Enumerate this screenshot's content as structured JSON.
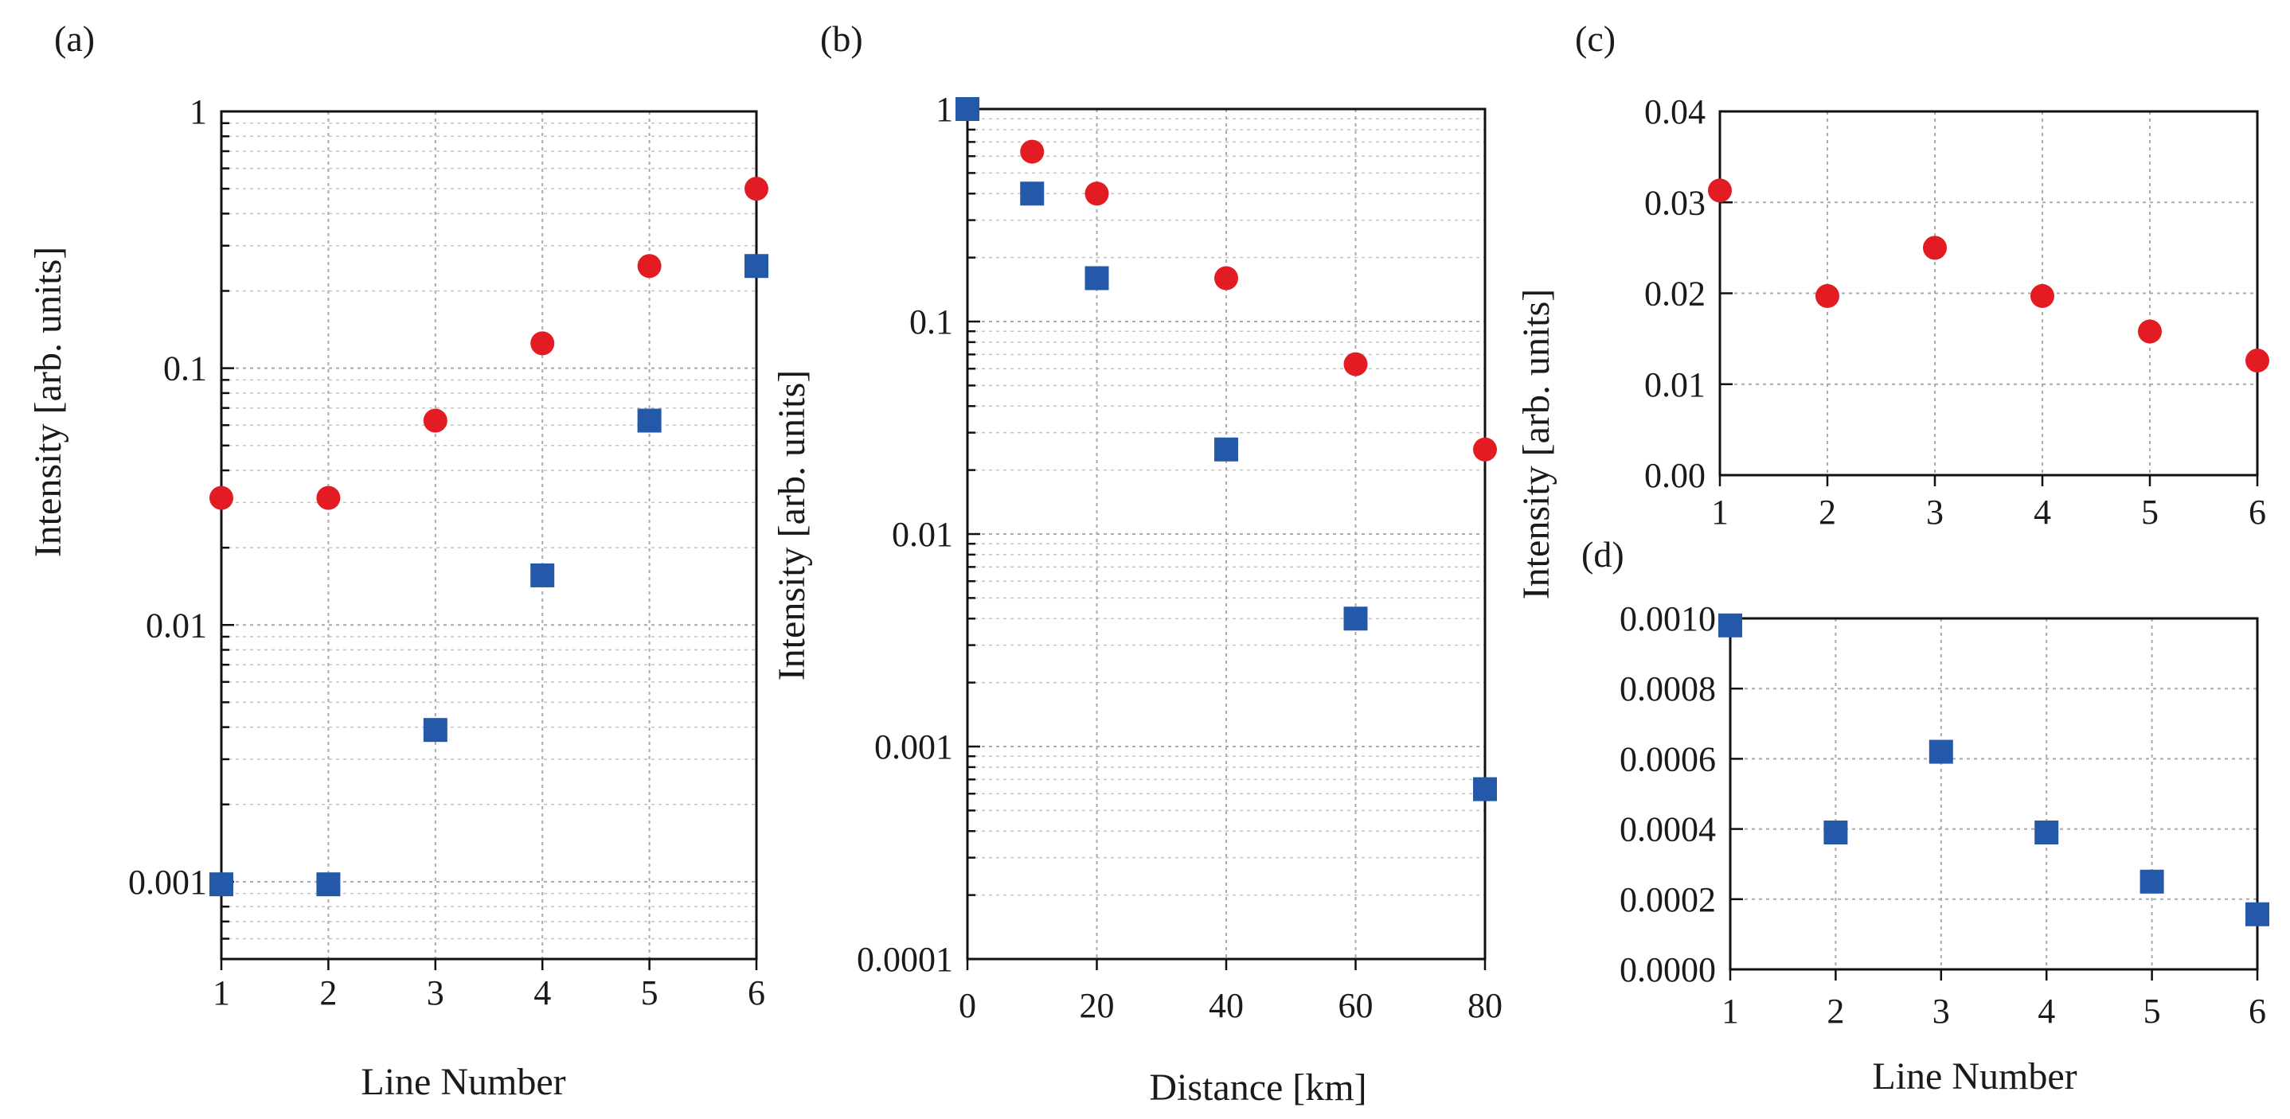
{
  "colors": {
    "red": "#e31b23",
    "blue": "#2458a8",
    "axis": "#111111",
    "grid": "#a9a9a9"
  },
  "chart_data": [
    {
      "id": "a",
      "panel_label": "(a)",
      "type": "scatter",
      "xlabel": "Line Number",
      "ylabel": "Intensity [arb. units]",
      "yscale": "log",
      "xlim": [
        1,
        6
      ],
      "ylim": [
        0.0005,
        1
      ],
      "xticks": [
        "1",
        "2",
        "3",
        "4",
        "5",
        "6"
      ],
      "yticks": [
        "0.001",
        "0.01",
        "0.1",
        "1"
      ],
      "series": [
        {
          "name": "red circles",
          "marker": "circle",
          "color": "#e31b23",
          "x": [
            1,
            2,
            3,
            4,
            5,
            6
          ],
          "y": [
            0.03125,
            0.03125,
            0.0625,
            0.125,
            0.25,
            0.5
          ]
        },
        {
          "name": "blue squares",
          "marker": "square",
          "color": "#2458a8",
          "x": [
            1,
            2,
            3,
            4,
            5,
            6
          ],
          "y": [
            0.000977,
            0.000977,
            0.0039,
            0.0156,
            0.0625,
            0.25
          ]
        }
      ]
    },
    {
      "id": "b",
      "panel_label": "(b)",
      "type": "scatter",
      "xlabel": "Distance [km]",
      "ylabel": "Intensity [arb. units]",
      "yscale": "log",
      "xlim": [
        0,
        80
      ],
      "ylim": [
        0.0001,
        1
      ],
      "xticks": [
        "0",
        "20",
        "40",
        "60",
        "80"
      ],
      "yticks": [
        "0.0001",
        "0.001",
        "0.01",
        "0.1",
        "1"
      ],
      "series": [
        {
          "name": "red circles",
          "marker": "circle",
          "color": "#e31b23",
          "x": [
            10,
            20,
            40,
            60,
            80
          ],
          "y": [
            0.63,
            0.4,
            0.16,
            0.063,
            0.025
          ]
        },
        {
          "name": "blue squares",
          "marker": "square",
          "color": "#2458a8",
          "x": [
            0,
            10,
            20,
            40,
            60,
            80
          ],
          "y": [
            1.0,
            0.4,
            0.16,
            0.025,
            0.004,
            0.00063
          ]
        }
      ]
    },
    {
      "id": "c",
      "panel_label": "(c)",
      "type": "scatter",
      "xlabel": "",
      "ylabel": "Intensity [arb. units]",
      "yscale": "linear",
      "xlim": [
        1,
        6
      ],
      "ylim": [
        0,
        0.04
      ],
      "xticks": [
        "1",
        "2",
        "3",
        "4",
        "5",
        "6"
      ],
      "yticks": [
        "0.00",
        "0.01",
        "0.02",
        "0.03",
        "0.04"
      ],
      "series": [
        {
          "name": "red circles",
          "marker": "circle",
          "color": "#e31b23",
          "x": [
            1,
            2,
            3,
            4,
            5,
            6
          ],
          "y": [
            0.0313,
            0.0197,
            0.025,
            0.0197,
            0.0158,
            0.0126
          ]
        }
      ]
    },
    {
      "id": "d",
      "panel_label": "(d)",
      "type": "scatter",
      "xlabel": "Line Number",
      "ylabel": "Intensity [arb. units]",
      "yscale": "linear",
      "xlim": [
        1,
        6
      ],
      "ylim": [
        0,
        0.001
      ],
      "xticks": [
        "1",
        "2",
        "3",
        "4",
        "5",
        "6"
      ],
      "yticks": [
        "0.0000",
        "0.0002",
        "0.0004",
        "0.0006",
        "0.0008",
        "0.0010"
      ],
      "series": [
        {
          "name": "blue squares",
          "marker": "square",
          "color": "#2458a8",
          "x": [
            1,
            2,
            3,
            4,
            5,
            6
          ],
          "y": [
            0.00098,
            0.00039,
            0.00062,
            0.00039,
            0.00025,
            0.000157
          ]
        }
      ]
    }
  ]
}
